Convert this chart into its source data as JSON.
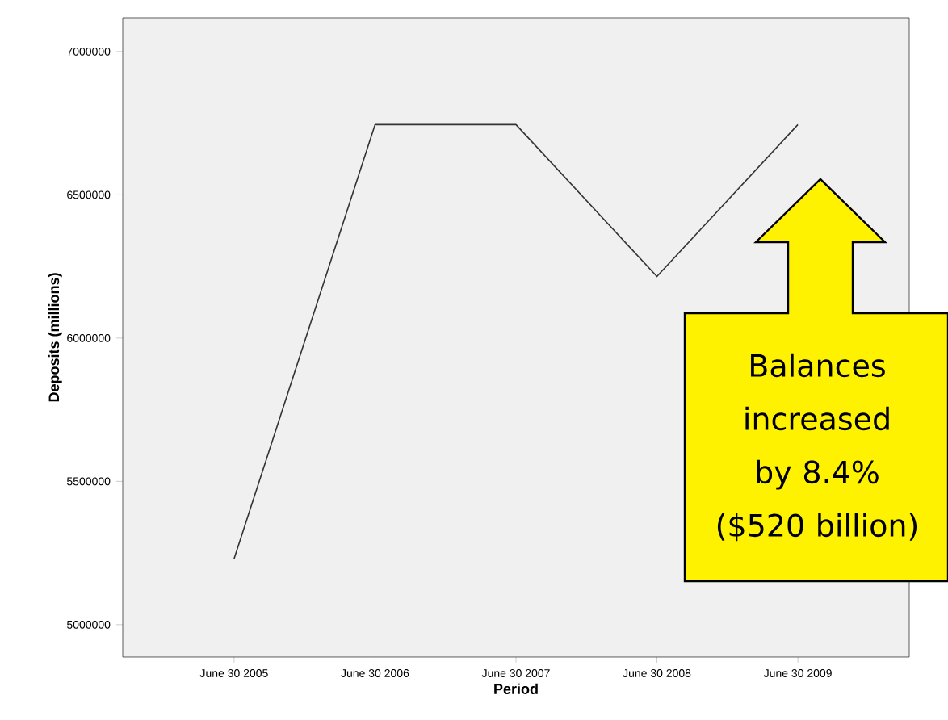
{
  "chart_data": {
    "type": "line",
    "xlabel": "Period",
    "ylabel": "Deposits (millions)",
    "categories": [
      "June 30 2005",
      "June 30 2006",
      "June 30 2007",
      "June 30 2008",
      "June 30 2009"
    ],
    "values": [
      5230000,
      6745000,
      6745000,
      6215000,
      6745000
    ],
    "color": "#333333",
    "ylim": [
      4887000,
      7118000
    ],
    "yticks": [
      5000000,
      5500000,
      6000000,
      6500000,
      7000000
    ],
    "grid": false,
    "annotations": [
      "Balances increased by 8.4% ($520 billion)"
    ]
  }
}
